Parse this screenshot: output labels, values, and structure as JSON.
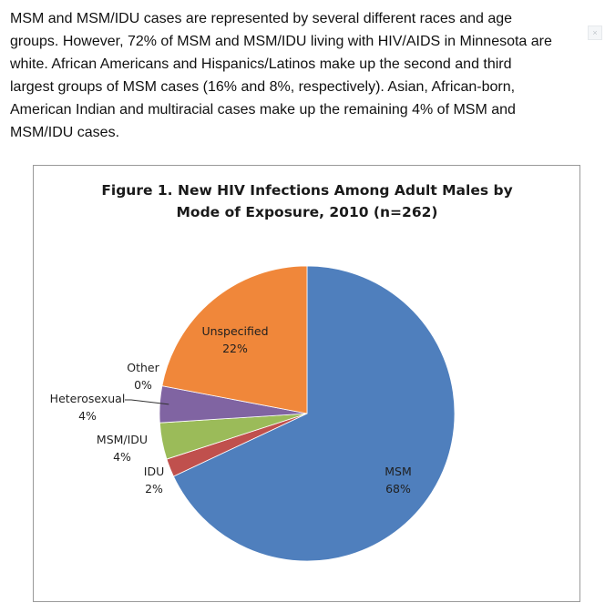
{
  "intro": {
    "text": "MSM and MSM/IDU cases are represented by several different races and age groups. However, 72% of MSM and MSM/IDU living with HIV/AIDS in Minnesota are white. African Americans and Hispanics/Latinos make up the second and third largest groups of MSM cases (16% and 8%, respectively). Asian, African-born, American Indian and multiracial cases make up the remaining 4% of MSM and MSM/IDU cases."
  },
  "corner_button": {
    "icon": "close-icon",
    "glyph": "×"
  },
  "chart_data": {
    "type": "pie",
    "title": "Figure 1.  New HIV Infections Among Adult Males by",
    "subtitle": "Mode of Exposure, 2010 (n=262)",
    "slices": [
      {
        "name": "MSM",
        "percent_label": "68%",
        "value": 68,
        "color": "#4f7fbd"
      },
      {
        "name": "IDU",
        "percent_label": "2%",
        "value": 2,
        "color": "#c0504d"
      },
      {
        "name": "MSM/IDU",
        "percent_label": "4%",
        "value": 4,
        "color": "#9bbb59"
      },
      {
        "name": "Heterosexual",
        "percent_label": "4%",
        "value": 4,
        "color": "#8064a2"
      },
      {
        "name": "Other",
        "percent_label": "0%",
        "value": 0,
        "color": "#4bacc6"
      },
      {
        "name": "Unspecified",
        "percent_label": "22%",
        "value": 22,
        "color": "#f0873a"
      }
    ]
  }
}
